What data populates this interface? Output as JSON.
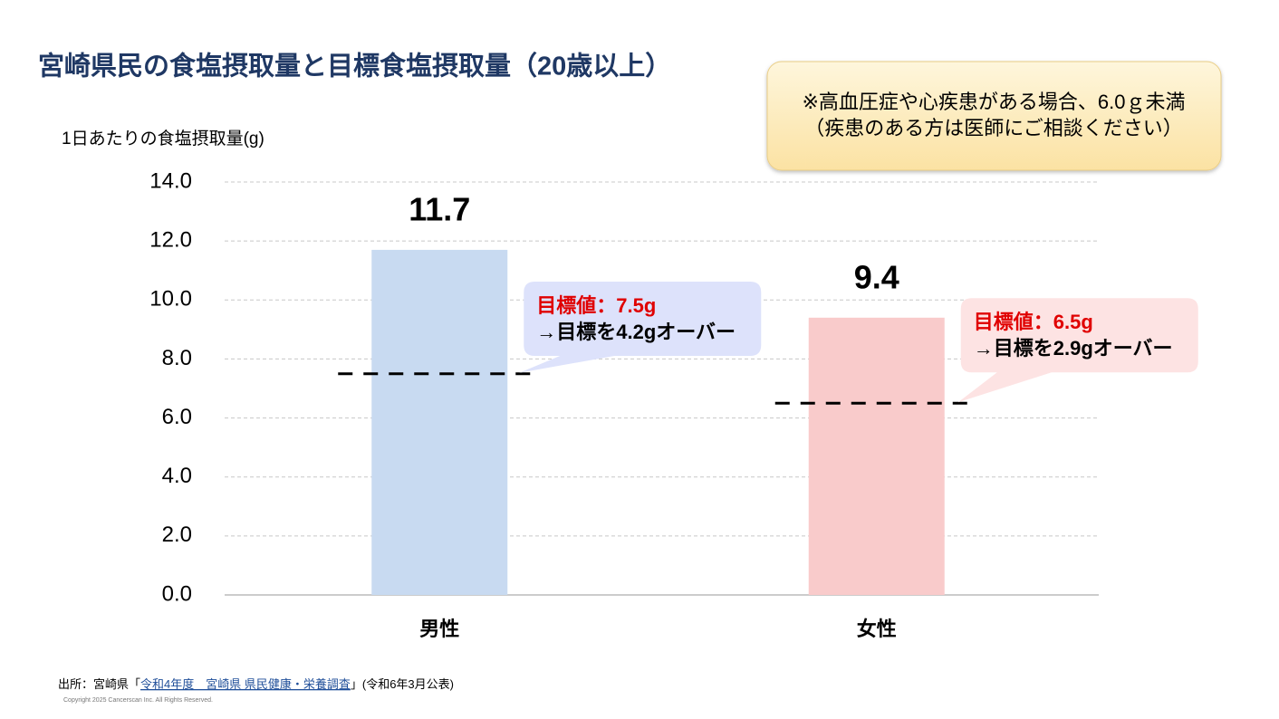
{
  "chart_data": {
    "type": "bar",
    "title": "宮崎県民の食塩摂取量と目標食塩摂取量（20歳以上）",
    "y_label": "1日あたりの食塩摂取量(g)",
    "note": [
      "※高血圧症や心疾患がある場合、6.0ｇ未満",
      "（疾患のある方は医師にご相談ください）"
    ],
    "categories": [
      "男性",
      "女性"
    ],
    "values": [
      11.7,
      9.4
    ],
    "colors": [
      "#c8daf1",
      "#f9cbcb"
    ],
    "targets": [
      7.5,
      6.5
    ],
    "callouts": [
      [
        "目標値：7.5g",
        "→目標を4.2gオーバー"
      ],
      [
        "目標値：6.5g",
        "→目標を2.9gオーバー"
      ]
    ],
    "callout_colors": [
      "#dde2fb",
      "#fde3e3"
    ],
    "ylim": [
      0,
      14
    ],
    "yticks": [
      {
        "value": 0,
        "label": "0.0"
      },
      {
        "value": 2,
        "label": "2.0"
      },
      {
        "value": 4,
        "label": "4.0"
      },
      {
        "value": 6,
        "label": "6.0"
      },
      {
        "value": 8,
        "label": "8.0"
      },
      {
        "value": 10,
        "label": "10.0"
      },
      {
        "value": 12,
        "label": "12.0"
      },
      {
        "value": 14,
        "label": "14.0"
      }
    ],
    "grid": true,
    "source": {
      "prefix": "出所：宮崎県「",
      "link": "令和4年度　宮崎県 県民健康・栄養調査",
      "suffix": "」(令和6年3月公表)"
    },
    "copyright": "Copyright 2025 Cancerscan Inc. All Rights Reserved."
  }
}
